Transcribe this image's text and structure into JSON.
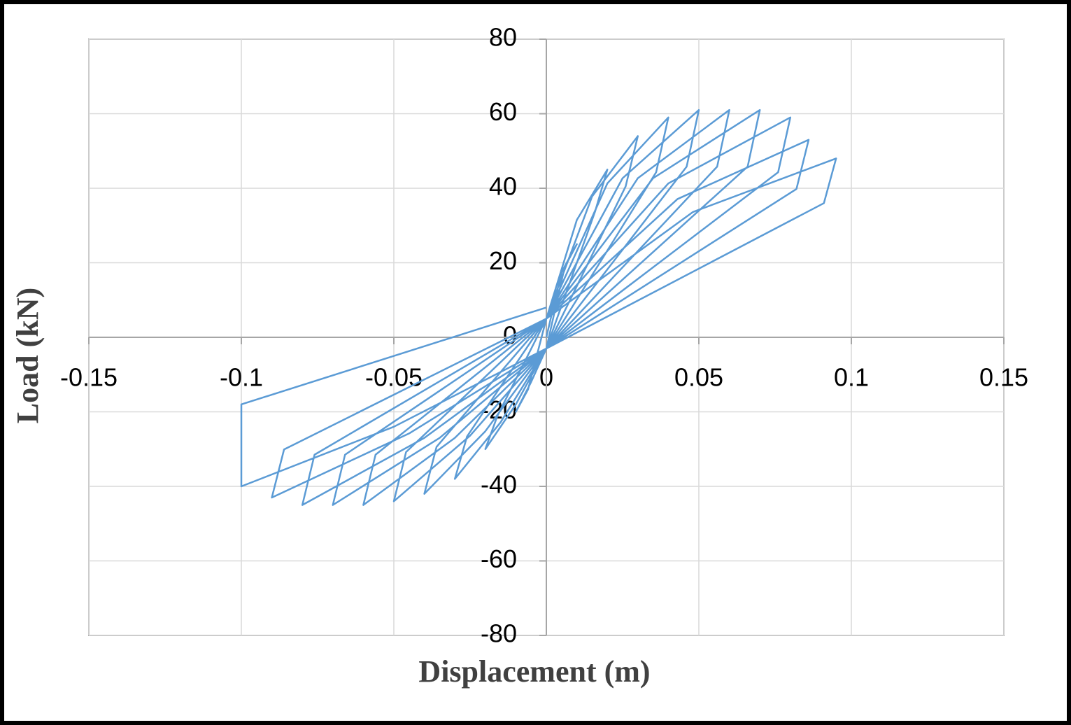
{
  "chart_data": {
    "type": "line",
    "xlabel": "Displacement (m)",
    "ylabel": "Load (kN)",
    "xlim": [
      -0.15,
      0.15
    ],
    "xticks": [
      -0.15,
      -0.1,
      -0.05,
      0,
      0.05,
      0.1,
      0.15
    ],
    "ylim": [
      -80,
      80
    ],
    "yticks": [
      -80,
      -60,
      -40,
      -20,
      0,
      20,
      40,
      60,
      80
    ],
    "grid": true,
    "series": [
      {
        "color": "#5b9bd5",
        "x": [
          0,
          0.005,
          0.01,
          0.006,
          0,
          -0.005,
          -0.01,
          -0.006,
          0,
          0.01,
          0.02,
          0.016,
          0,
          -0.01,
          -0.02,
          -0.016,
          0,
          0.015,
          0.03,
          0.026,
          0,
          -0.015,
          -0.03,
          -0.026,
          0,
          0.02,
          0.04,
          0.036,
          0,
          -0.02,
          -0.04,
          -0.036,
          0,
          0.025,
          0.05,
          0.046,
          0,
          -0.025,
          -0.05,
          -0.046,
          0,
          0.03,
          0.06,
          0.056,
          0,
          -0.03,
          -0.06,
          -0.056,
          0,
          0.035,
          0.07,
          0.066,
          0,
          -0.035,
          -0.07,
          -0.066,
          0,
          0.04,
          0.08,
          0.076,
          0,
          -0.04,
          -0.08,
          -0.076,
          0,
          0.043,
          0.086,
          0.082,
          0,
          -0.045,
          -0.09,
          -0.086,
          0,
          0.048,
          0.095,
          0.091,
          0,
          -0.05,
          -0.1,
          -0.1,
          0
        ],
        "values": [
          0,
          17.5,
          25,
          18.8,
          -3,
          -12,
          -20,
          -14,
          5,
          31.5,
          45,
          33.8,
          -3,
          -18,
          -30,
          -21,
          5,
          37.8,
          54,
          40.5,
          -3,
          -22.8,
          -38,
          -26.6,
          5,
          41.3,
          59,
          44.3,
          -3,
          -25.2,
          -42,
          -29.4,
          5,
          42.7,
          61,
          45.8,
          -3,
          -26.4,
          -44,
          -30.8,
          5,
          42.7,
          61,
          45.8,
          -3,
          -27,
          -45,
          -31.5,
          5,
          42.7,
          61,
          45.8,
          -3,
          -27,
          -45,
          -31.5,
          5,
          41.3,
          59,
          44.3,
          -3,
          -27,
          -45,
          -31.5,
          5,
          37.1,
          53,
          39.8,
          -3,
          -25.8,
          -43,
          -30.1,
          5,
          33.6,
          48,
          36,
          -3,
          -24,
          -40,
          -18,
          8
        ]
      }
    ]
  }
}
